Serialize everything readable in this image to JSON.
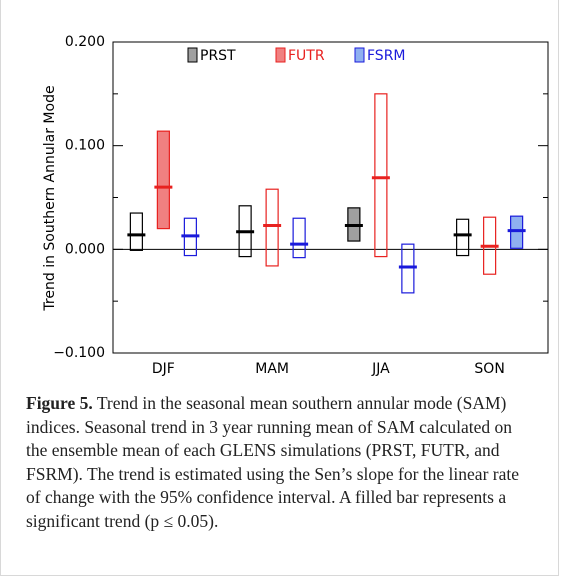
{
  "chart_data": {
    "type": "range-bar",
    "y_label": "Trend in Southern Annular Mode",
    "categories": [
      "DJF",
      "MAM",
      "JJA",
      "SON"
    ],
    "ylim": [
      -0.1,
      0.2
    ],
    "yticks": [
      {
        "value": -0.1,
        "label": "−0.100"
      },
      {
        "value": 0,
        "label": "0.000"
      },
      {
        "value": 0.1,
        "label": "0.100"
      },
      {
        "value": 0.2,
        "label": "0.200"
      }
    ],
    "yminorticks": [
      -0.05,
      0.05,
      0.15
    ],
    "zero_line": true,
    "legend": "top",
    "series": [
      {
        "name": "PRST",
        "color": "#000000",
        "fill": "#a0a0a0",
        "values": [
          0.014,
          0.017,
          0.023,
          0.014
        ],
        "lower": [
          -0.001,
          -0.007,
          0.008,
          -0.006
        ],
        "upper": [
          0.035,
          0.042,
          0.04,
          0.029
        ],
        "significant": [
          false,
          false,
          true,
          false
        ]
      },
      {
        "name": "FUTR",
        "color": "#e8211f",
        "fill": "#f08080",
        "values": [
          0.06,
          0.023,
          0.069,
          0.003
        ],
        "lower": [
          0.02,
          -0.016,
          -0.007,
          -0.024
        ],
        "upper": [
          0.114,
          0.058,
          0.15,
          0.031
        ],
        "significant": [
          true,
          false,
          false,
          false
        ]
      },
      {
        "name": "FSRM",
        "color": "#1a1adb",
        "fill": "#8fb0f0",
        "values": [
          0.013,
          0.005,
          -0.017,
          0.018
        ],
        "lower": [
          -0.006,
          -0.008,
          -0.042,
          0.001
        ],
        "upper": [
          0.03,
          0.03,
          0.005,
          0.032
        ],
        "significant": [
          false,
          false,
          false,
          true
        ]
      }
    ]
  },
  "caption": {
    "label": "Figure 5.",
    "text": "Trend in the seasonal mean southern annular mode (SAM) indices. Seasonal trend in 3 year running mean of SAM calculated on the ensemble mean of each GLENS simulations (PRST, FUTR, and FSRM). The trend is estimated using the Sen’s slope for the linear rate of change with the 95% confidence interval. A filled bar represents a significant trend (p ≤ 0.05)."
  }
}
